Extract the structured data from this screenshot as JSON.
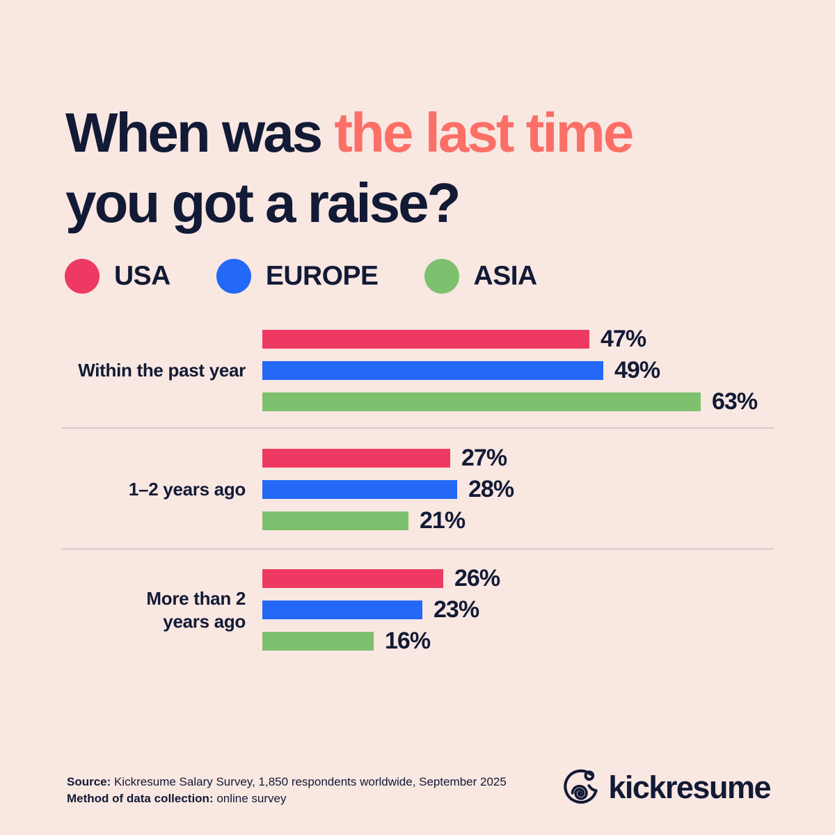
{
  "page": {
    "background": "#f9e7e2",
    "text_color": "#121a35",
    "accent_color": "#fb6f66"
  },
  "title": {
    "line1_dark": "When was ",
    "line1_accent": "the last time",
    "line2": "you got a raise?"
  },
  "legend": [
    {
      "label": "USA",
      "color": "#ee3a62"
    },
    {
      "label": "EUROPE",
      "color": "#2368f6"
    },
    {
      "label": "ASIA",
      "color": "#7dc06e"
    }
  ],
  "chart_data": {
    "type": "bar",
    "orientation": "horizontal",
    "title": "When was the last time you got a raise?",
    "categories": [
      "Within the past year",
      "1–2 years ago",
      "More than 2 years ago"
    ],
    "category_label_lines": [
      [
        "Within the past year"
      ],
      [
        "1–2 years ago"
      ],
      [
        "More than 2",
        "years ago"
      ]
    ],
    "series": [
      {
        "name": "USA",
        "color": "#ee3a62",
        "values": [
          47,
          27,
          26
        ]
      },
      {
        "name": "EUROPE",
        "color": "#2368f6",
        "values": [
          49,
          28,
          23
        ]
      },
      {
        "name": "ASIA",
        "color": "#7dc06e",
        "values": [
          63,
          21,
          16
        ]
      }
    ],
    "value_suffix": "%",
    "xlim": [
      0,
      100
    ],
    "grid": false,
    "legend_position": "top"
  },
  "footer": {
    "source_label": "Source:",
    "source_text": " Kickresume Salary Survey, 1,850 respondents worldwide, September 2025",
    "method_label": "Method of data collection:",
    "method_text": " online survey"
  },
  "logo": {
    "brand": "kickresume"
  }
}
